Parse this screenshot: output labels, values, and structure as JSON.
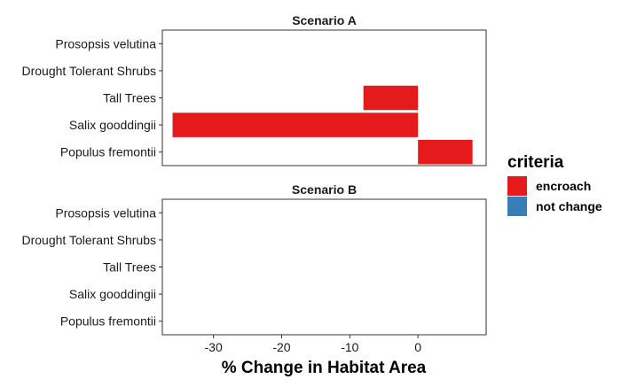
{
  "chart_data": [
    {
      "type": "bar",
      "orientation": "horizontal",
      "title": "Scenario A",
      "categories": [
        "Prosopsis velutina",
        "Drought Tolerant Shrubs",
        "Tall Trees",
        "Salix gooddingii",
        "Populus fremontii"
      ],
      "values": [
        null,
        null,
        -8,
        -36,
        8
      ],
      "criteria": [
        null,
        null,
        "encroach",
        "encroach",
        "encroach"
      ],
      "xlim": [
        -37.5,
        10
      ],
      "grid": false
    },
    {
      "type": "bar",
      "orientation": "horizontal",
      "title": "Scenario B",
      "categories": [
        "Prosopsis velutina",
        "Drought Tolerant Shrubs",
        "Tall Trees",
        "Salix gooddingii",
        "Populus fremontii"
      ],
      "values": [
        null,
        null,
        null,
        null,
        null
      ],
      "criteria": [
        null,
        null,
        null,
        null,
        null
      ],
      "xlim": [
        -37.5,
        10
      ],
      "grid": false
    }
  ],
  "axis": {
    "xlabel": "% Change in Habitat Area",
    "xticks": [
      -30,
      -20,
      -10,
      0
    ]
  },
  "legend": {
    "title": "criteria",
    "position": "right",
    "entries": [
      {
        "label": "encroach",
        "color": "#e41a1c"
      },
      {
        "label": "not change",
        "color": "#377eb8"
      }
    ]
  }
}
